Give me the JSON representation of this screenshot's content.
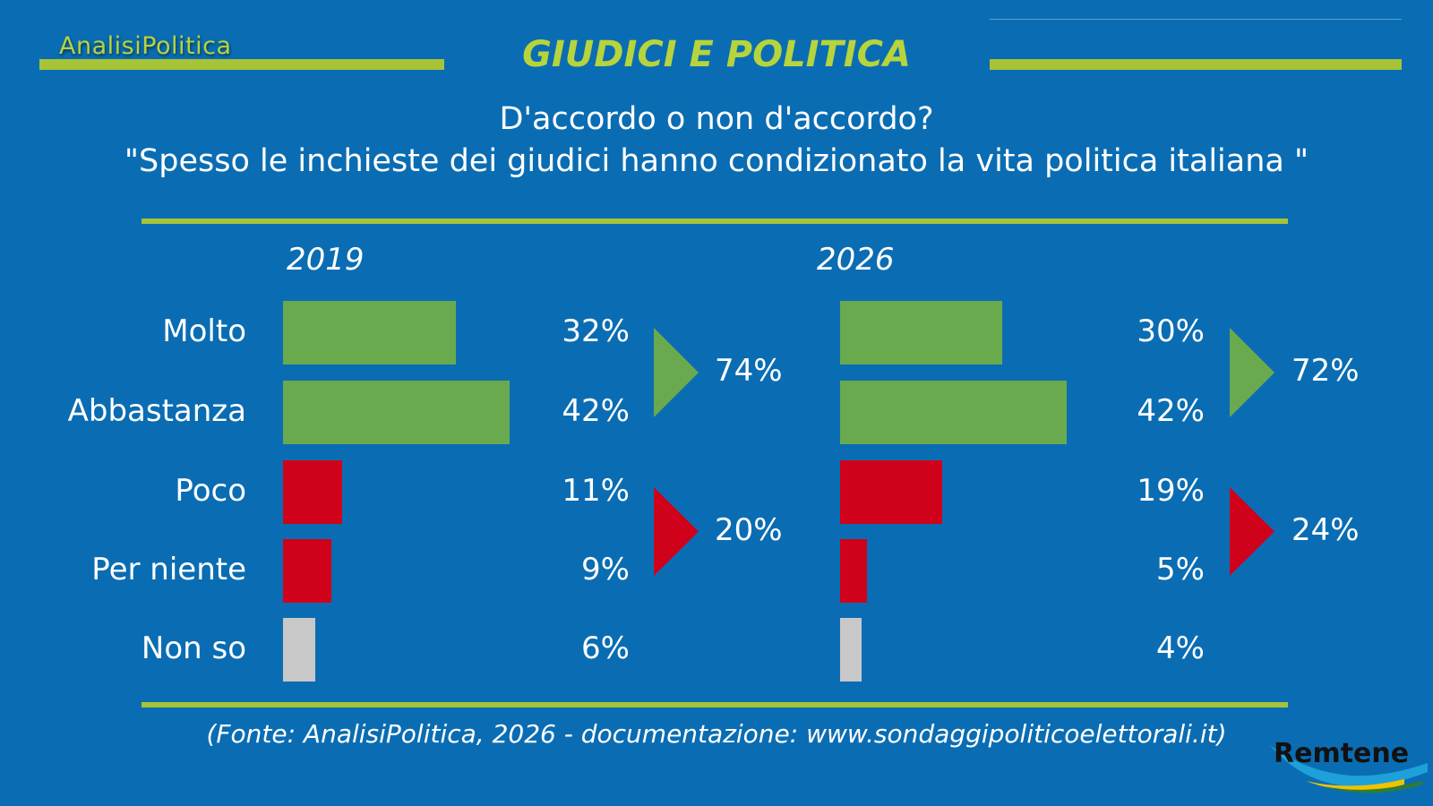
{
  "brand": "AnalisiPolitica",
  "title": "GIUDICI E POLITICA",
  "question_line1": "D'accordo o non d'accordo?",
  "question_line2": "\"Spesso le inchieste dei giudici hanno condizionato la vita politica italiana \"",
  "source": "(Fonte: AnalisiPolitica, 2026 - documentazione: www.sondaggipoliticoelettorali.it)",
  "logo": "Remtene",
  "colors": {
    "background": "#0a6db3",
    "accent": "#a6c436",
    "agree": "#6aaa4f",
    "disagree": "#d0021b",
    "unsure": "#c8c8c8",
    "text": "#ffffff"
  },
  "chart_data": {
    "type": "bar",
    "orientation": "horizontal",
    "categories": [
      "Molto",
      "Abbastanza",
      "Poco",
      "Per niente",
      "Non so"
    ],
    "category_groups": [
      "agree",
      "agree",
      "disagree",
      "disagree",
      "unsure"
    ],
    "series": [
      {
        "name": "2019",
        "values": [
          32,
          42,
          11,
          9,
          6
        ],
        "labels": [
          "32%",
          "42%",
          "11%",
          "9%",
          "6%"
        ],
        "totals": {
          "agree": "74%",
          "disagree": "20%"
        }
      },
      {
        "name": "2026",
        "values": [
          30,
          42,
          19,
          5,
          4
        ],
        "labels": [
          "30%",
          "42%",
          "19%",
          "5%",
          "4%"
        ],
        "totals": {
          "agree": "72%",
          "disagree": "24%"
        }
      }
    ],
    "xlim": [
      0,
      42
    ],
    "grid": false,
    "legend": "none"
  }
}
